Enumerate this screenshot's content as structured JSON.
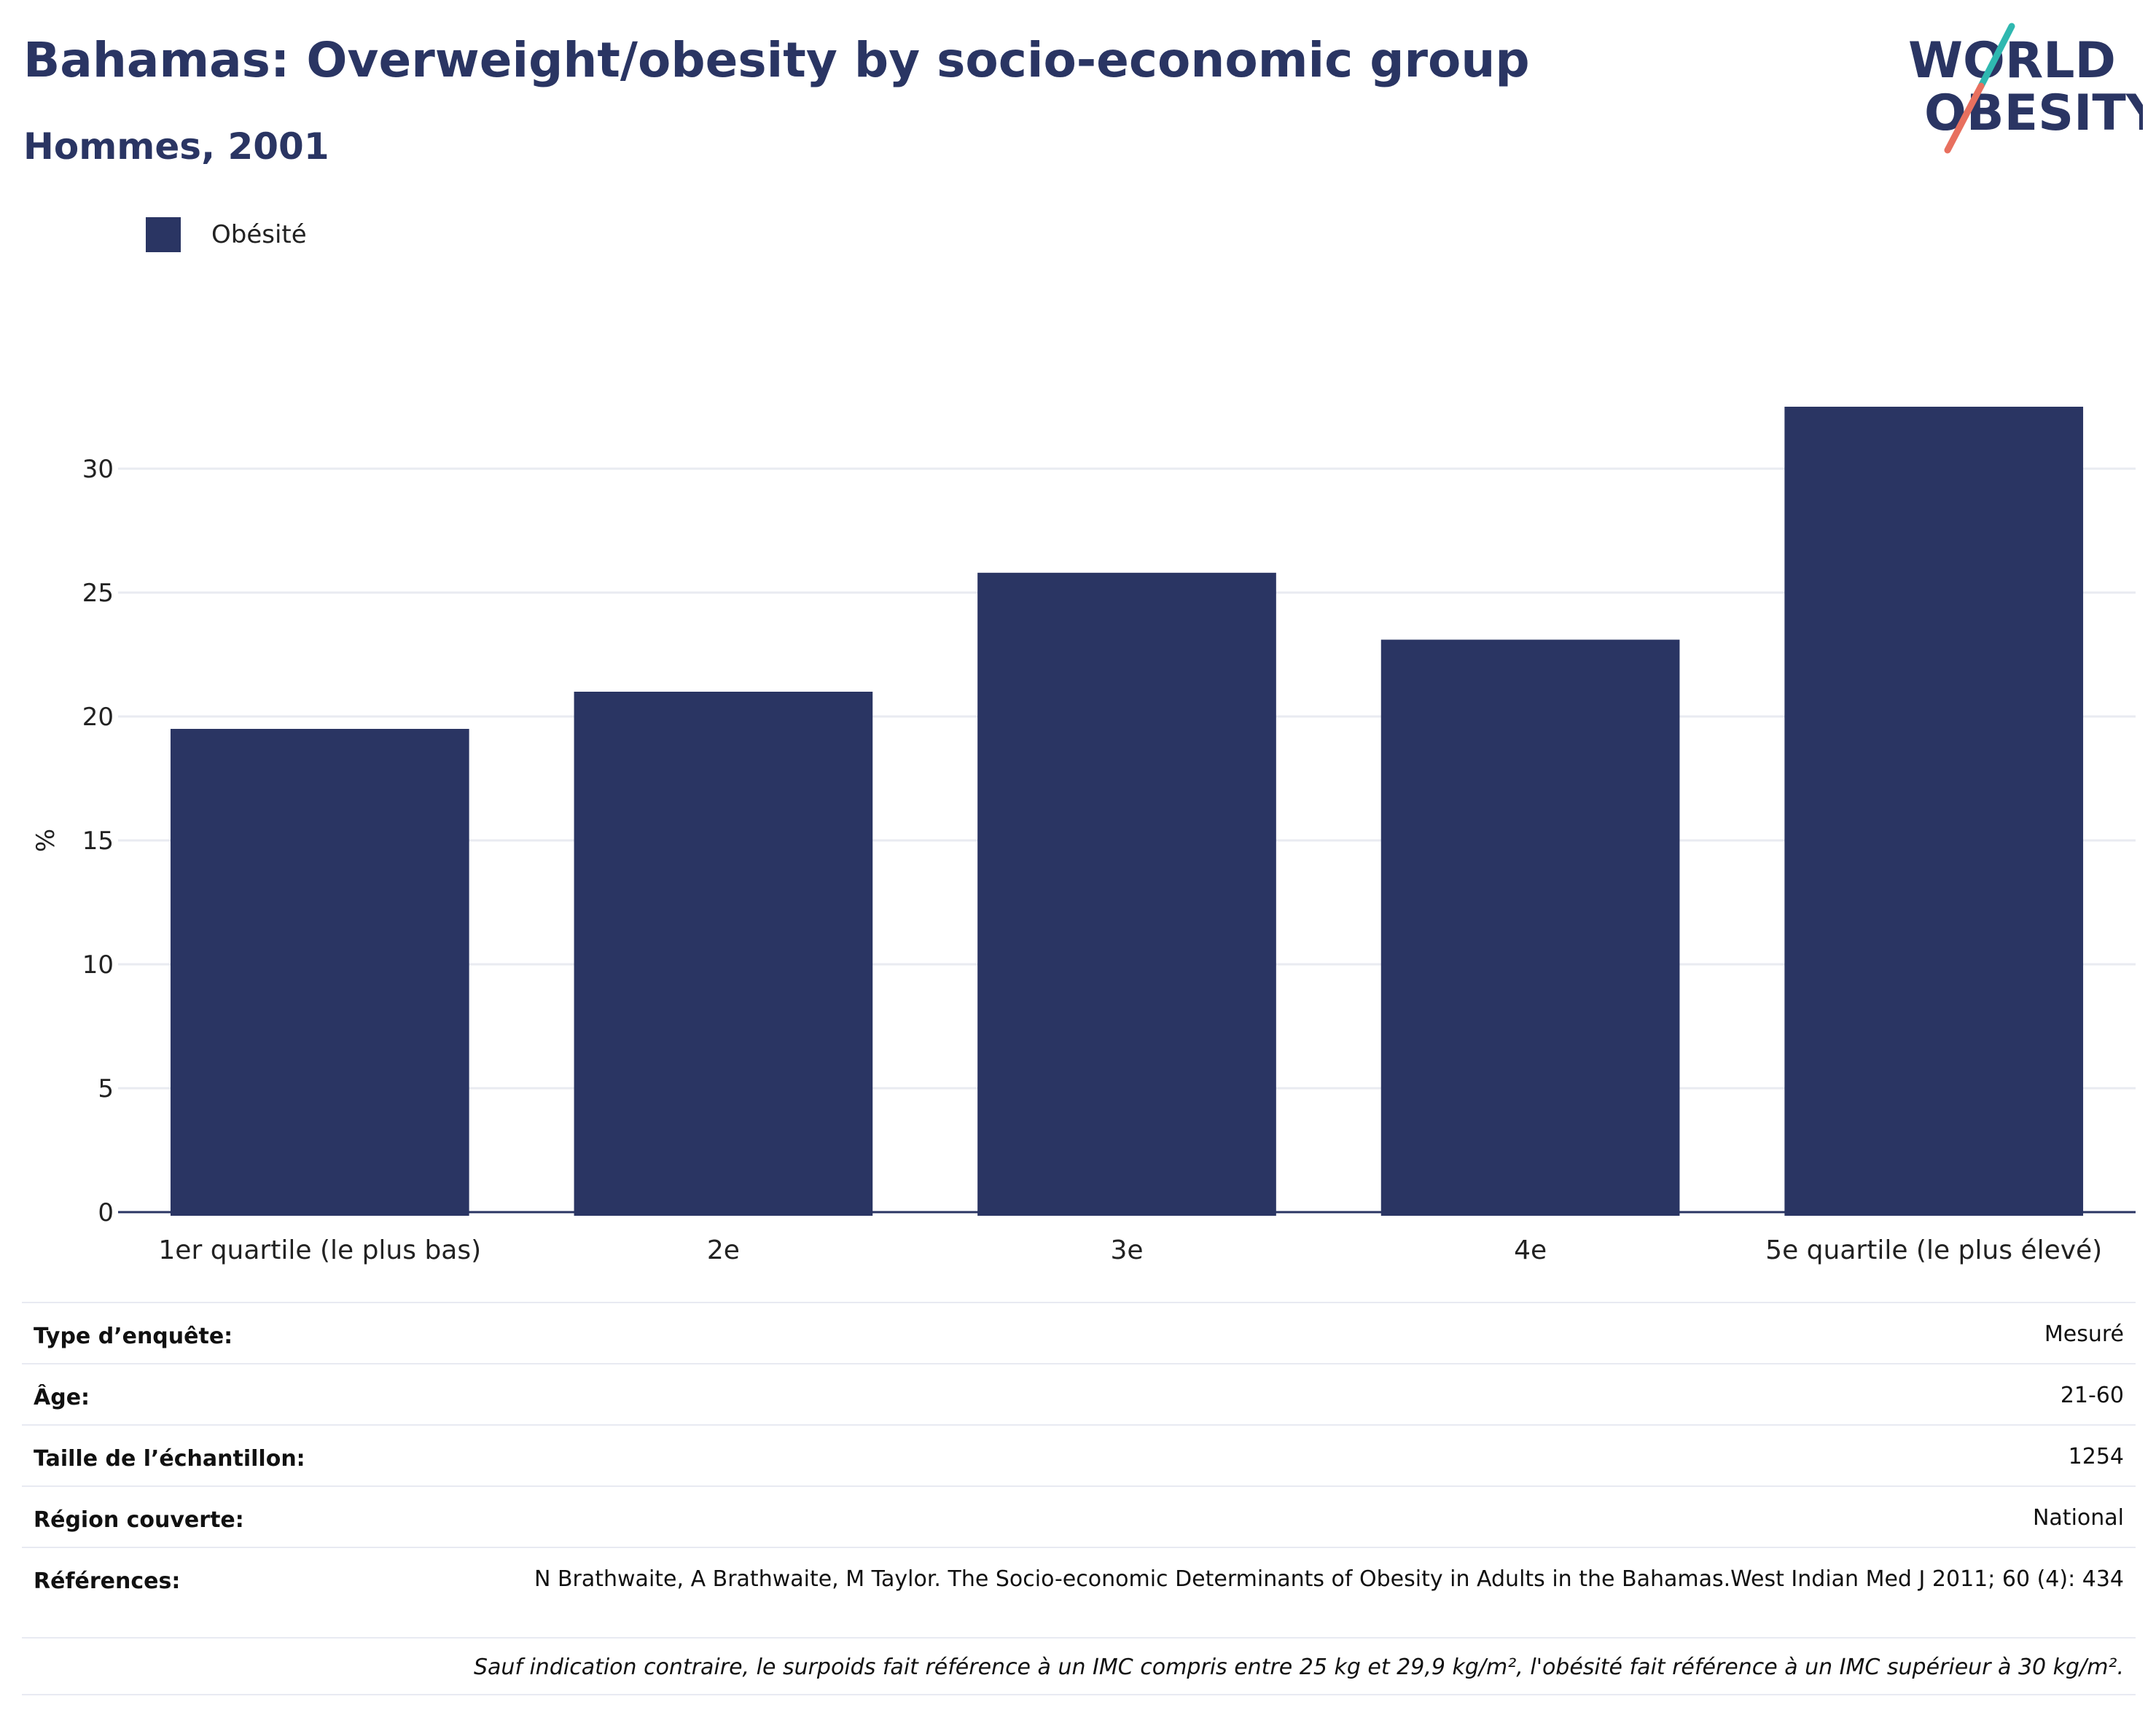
{
  "header": {
    "title": "Bahamas: Overweight/obesity by socio-economic group",
    "subtitle": "Hommes, 2001"
  },
  "logo": {
    "line1": "WORLD",
    "line2": "OBESITY",
    "colors": [
      "#2a3563",
      "#2fb8b0",
      "#e8705f"
    ]
  },
  "colors": {
    "bar": "#2a3563",
    "grid": "#e9ebf1",
    "axis": "#2a3563"
  },
  "chart_data": {
    "type": "bar",
    "title": "Bahamas: Overweight/obesity by socio-economic group",
    "subtitle": "Hommes, 2001",
    "categories": [
      "1er quartile (le plus bas)",
      "2e",
      "3e",
      "4e",
      "5e quartile (le plus élevé)"
    ],
    "series": [
      {
        "name": "Obésité",
        "values": [
          19.5,
          21.0,
          25.8,
          23.1,
          32.5
        ]
      }
    ],
    "xlabel": "",
    "ylabel": "%",
    "ylim": [
      0,
      35
    ],
    "yticks": [
      0,
      5,
      10,
      15,
      20,
      25,
      30
    ],
    "grid": true,
    "legend_position": "top-left"
  },
  "meta": {
    "rows": [
      {
        "key": "Type d’enquête:",
        "value": "Mesuré"
      },
      {
        "key": "Âge:",
        "value": "21-60"
      },
      {
        "key": "Taille de l’échantillon:",
        "value": "1254"
      },
      {
        "key": "Région couverte:",
        "value": "National"
      },
      {
        "key": "Références:",
        "value": "N Brathwaite, A Brathwaite, M Taylor. The Socio-economic Determinants of Obesity in Adults in the Bahamas.West Indian Med J 2011; 60 (4): 434"
      }
    ],
    "note": "Sauf indication contraire, le surpoids fait référence à un IMC compris entre 25 kg et 29,9 kg/m², l'obésité fait référence à un IMC supérieur à 30 kg/m²."
  }
}
